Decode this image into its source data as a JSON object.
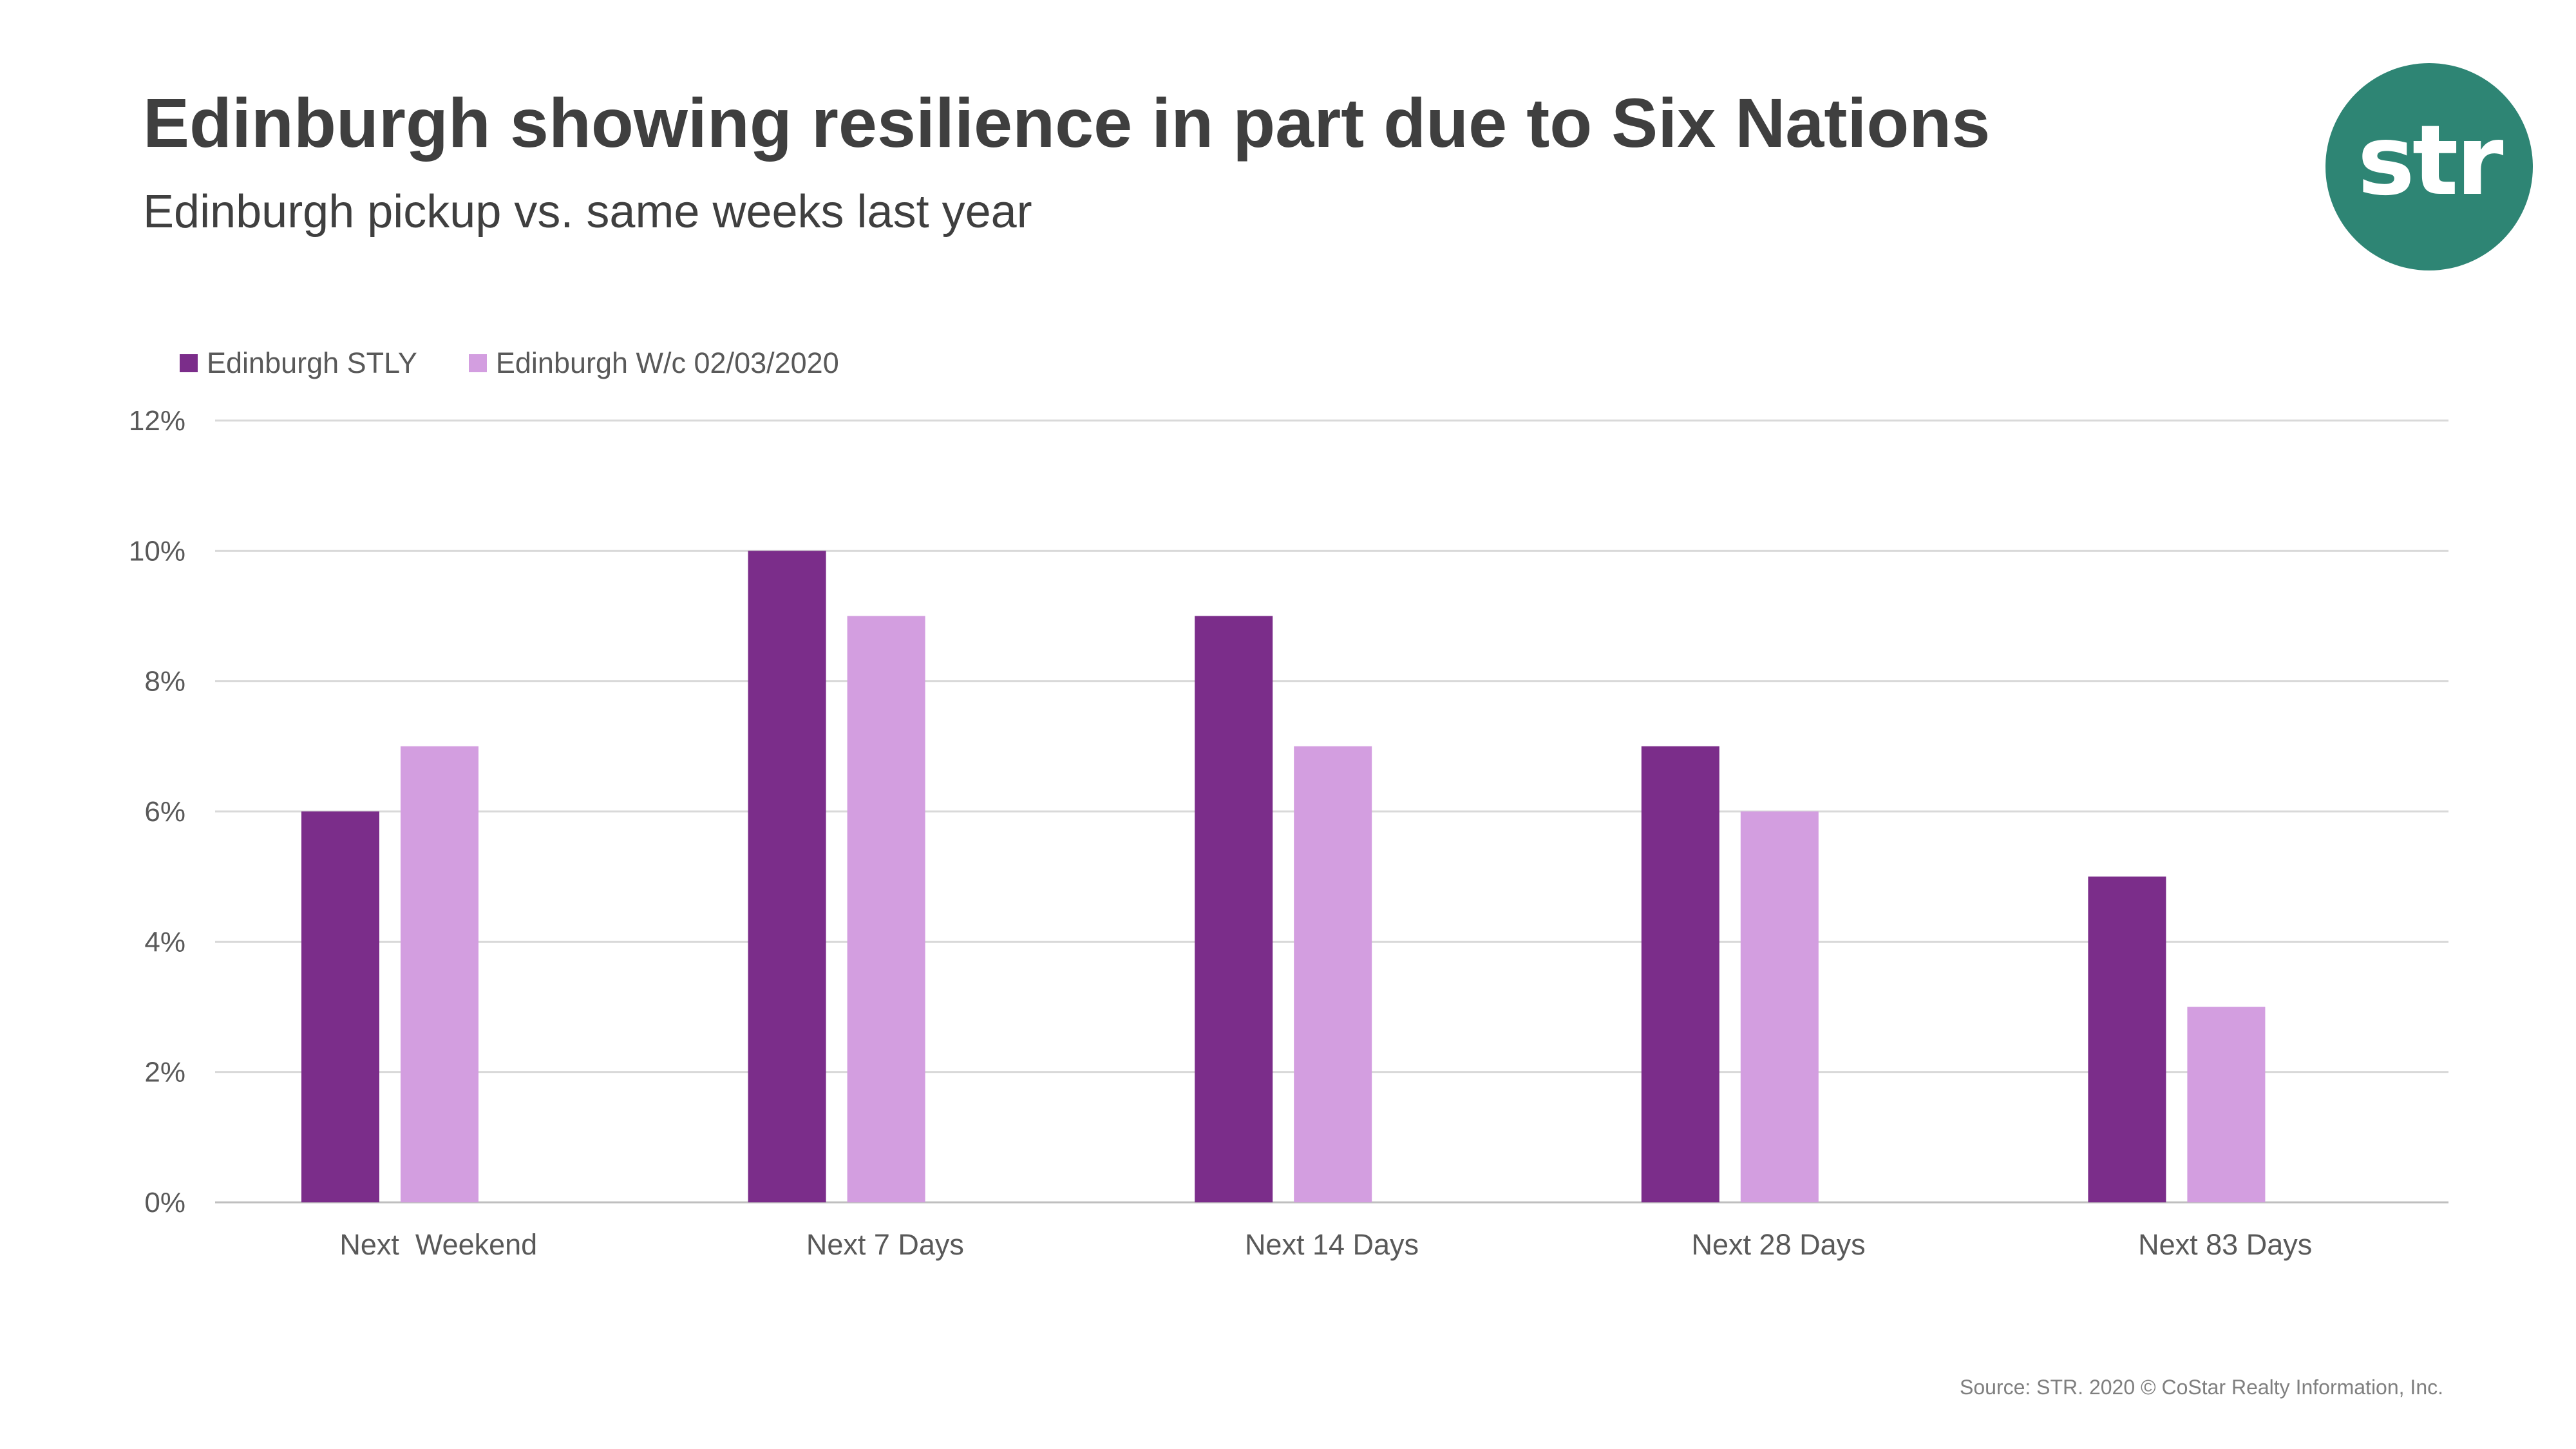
{
  "header": {
    "title": "Edinburgh showing resilience in part due to Six Nations",
    "subtitle": "Edinburgh pickup vs. same weeks last year"
  },
  "logo": {
    "text": "str",
    "color": "#2e8574"
  },
  "footer": {
    "source": "Source: STR. 2020 © CoStar Realty Information, Inc."
  },
  "chart_data": {
    "type": "bar",
    "title": "Edinburgh showing resilience in part due to Six Nations",
    "subtitle": "Edinburgh pickup vs. same weeks last year",
    "xlabel": "",
    "ylabel": "",
    "categories": [
      "Next  Weekend",
      "Next 7 Days",
      "Next 14 Days",
      "Next 28 Days",
      "Next 83 Days"
    ],
    "series": [
      {
        "name": "Edinburgh STLY",
        "color": "#7b2d8a",
        "values": [
          6,
          10,
          9,
          7,
          5
        ]
      },
      {
        "name": "Edinburgh W/c 02/03/2020",
        "color": "#d39ee0",
        "values": [
          7,
          9,
          7,
          6,
          3
        ]
      }
    ],
    "ylim": [
      0,
      12
    ],
    "yticks": [
      "0%",
      "2%",
      "4%",
      "6%",
      "8%",
      "10%",
      "12%"
    ],
    "grid": true,
    "legend": "top-left"
  }
}
